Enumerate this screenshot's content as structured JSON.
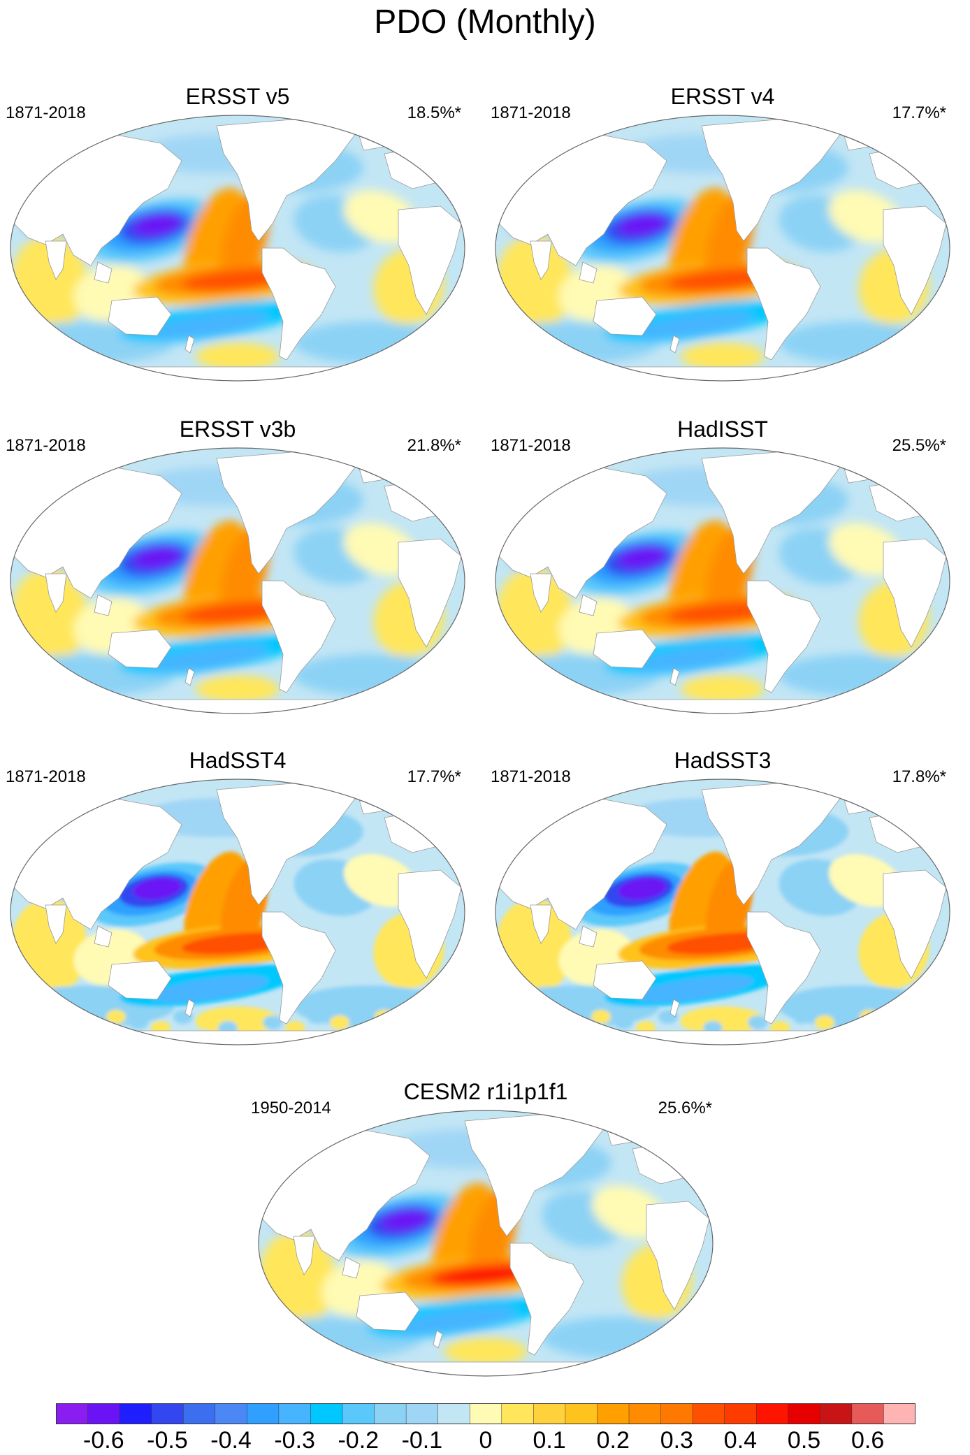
{
  "title": "PDO (Monthly)",
  "panels": [
    {
      "name": "ERSST v5",
      "years": "1871-2018",
      "variance": "18.5%*",
      "style": "smooth"
    },
    {
      "name": "ERSST v4",
      "years": "1871-2018",
      "variance": "17.7%*",
      "style": "smooth"
    },
    {
      "name": "ERSST v3b",
      "years": "1871-2018",
      "variance": "21.8%*",
      "style": "smooth"
    },
    {
      "name": "HadISST",
      "years": "1871-2018",
      "variance": "25.5%*",
      "style": "smooth"
    },
    {
      "name": "HadSST4",
      "years": "1871-2018",
      "variance": "17.7%*",
      "style": "blocky"
    },
    {
      "name": "HadSST3",
      "years": "1871-2018",
      "variance": "17.8%*",
      "style": "blocky"
    },
    {
      "name": "CESM2 r1i1p1f1",
      "years": "1950-2014",
      "variance": "25.6%*",
      "style": "model"
    }
  ],
  "colorbar": {
    "colors": [
      "#8a1ef0",
      "#6a14f5",
      "#1e1eff",
      "#3346f0",
      "#3c6ef0",
      "#4b87f5",
      "#2fa0ff",
      "#46b4ff",
      "#00c8ff",
      "#5ac8fa",
      "#8cd2f5",
      "#a0d6f5",
      "#c3e6f5",
      "#fffab4",
      "#ffe65a",
      "#ffd23c",
      "#ffc31e",
      "#ffa000",
      "#ff8c00",
      "#ff7800",
      "#ff5000",
      "#ff3c00",
      "#ff1400",
      "#e60000",
      "#c81414",
      "#e65a5a",
      "#ffb4b4"
    ],
    "labels": [
      "-0.6",
      "-0.5",
      "-0.4",
      "-0.3",
      "-0.2",
      "-0.1",
      "0",
      "0.1",
      "0.2",
      "0.3",
      "0.4",
      "0.5",
      "0.6"
    ]
  }
}
